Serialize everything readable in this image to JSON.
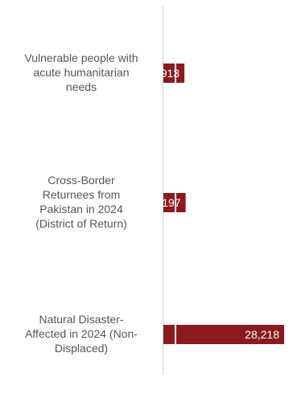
{
  "chart_data": {
    "type": "bar",
    "orientation": "horizontal",
    "categories": [
      "Vulnerable people with acute humanitarian needs",
      "Cross-Border Returnees from Pakistan in 2024 (District of Return)",
      "Natural Disaster-Affected in 2024 (Non-Displaced)"
    ],
    "category_lines": [
      [
        "Vulnerable people with",
        "acute humanitarian",
        "needs"
      ],
      [
        "Cross-Border",
        "Returnees from",
        "Pakistan in 2024",
        "(District of Return)"
      ],
      [
        "Natural Disaster-",
        "Affected in 2024 (Non-",
        "Displaced)"
      ]
    ],
    "values": [
      4913,
      5197,
      28218
    ],
    "value_labels": [
      "4,913",
      "5,197",
      "28,218"
    ],
    "title": "",
    "xlabel": "",
    "ylabel": "",
    "xlim": [
      0,
      28218
    ],
    "grid": false,
    "legend": "none",
    "colors": {
      "bar": "#8b1a1f",
      "bar_stripe": "#ffffff",
      "axis": "#cfcfcf",
      "text": "#555555",
      "value_text": "#ffffff"
    }
  }
}
